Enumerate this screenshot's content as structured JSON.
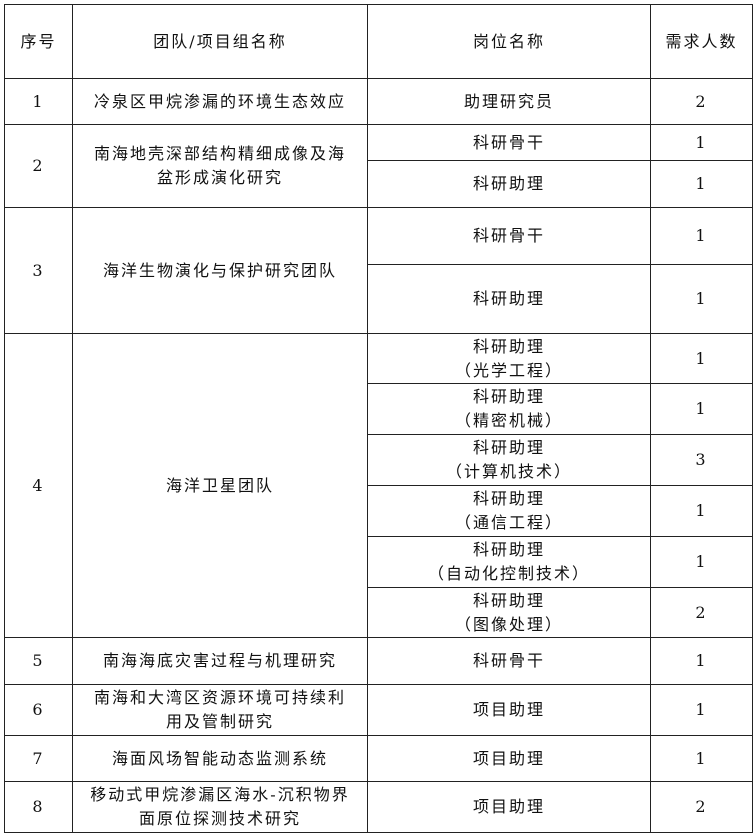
{
  "header": {
    "no": "序号",
    "team": "团队/项目组名称",
    "position": "岗位名称",
    "count": "需求人数"
  },
  "rows": [
    {
      "no": "1",
      "team": "冷泉区甲烷渗漏的环境生态效应",
      "positions": [
        {
          "title": "助理研究员",
          "count": "2"
        }
      ]
    },
    {
      "no": "2",
      "team": "南海地壳深部结构精细成像及海盆形成演化研究",
      "positions": [
        {
          "title": "科研骨干",
          "count": "1"
        },
        {
          "title": "科研助理",
          "count": "1"
        }
      ]
    },
    {
      "no": "3",
      "team": "海洋生物演化与保护研究团队",
      "positions": [
        {
          "title": "科研骨干",
          "count": "1"
        },
        {
          "title": "科研助理",
          "count": "1"
        }
      ]
    },
    {
      "no": "4",
      "team": "海洋卫星团队",
      "positions": [
        {
          "title": "科研助理",
          "sub": "（光学工程）",
          "count": "1"
        },
        {
          "title": "科研助理",
          "sub": "（精密机械）",
          "count": "1"
        },
        {
          "title": "科研助理",
          "sub": "（计算机技术）",
          "count": "3"
        },
        {
          "title": "科研助理",
          "sub": "（通信工程）",
          "count": "1"
        },
        {
          "title": "科研助理",
          "sub": "（自动化控制技术）",
          "count": "1"
        },
        {
          "title": "科研助理",
          "sub": "（图像处理）",
          "count": "2"
        }
      ]
    },
    {
      "no": "5",
      "team": "南海海底灾害过程与机理研究",
      "positions": [
        {
          "title": "科研骨干",
          "count": "1"
        }
      ]
    },
    {
      "no": "6",
      "team": "南海和大湾区资源环境可持续利用及管制研究",
      "positions": [
        {
          "title": "项目助理",
          "count": "1"
        }
      ]
    },
    {
      "no": "7",
      "team": "海面风场智能动态监测系统",
      "positions": [
        {
          "title": "项目助理",
          "count": "1"
        }
      ]
    },
    {
      "no": "8",
      "team": "移动式甲烷渗漏区海水-沉积物界面原位探测技术研究",
      "positions": [
        {
          "title": "项目助理",
          "count": "2"
        }
      ]
    }
  ]
}
